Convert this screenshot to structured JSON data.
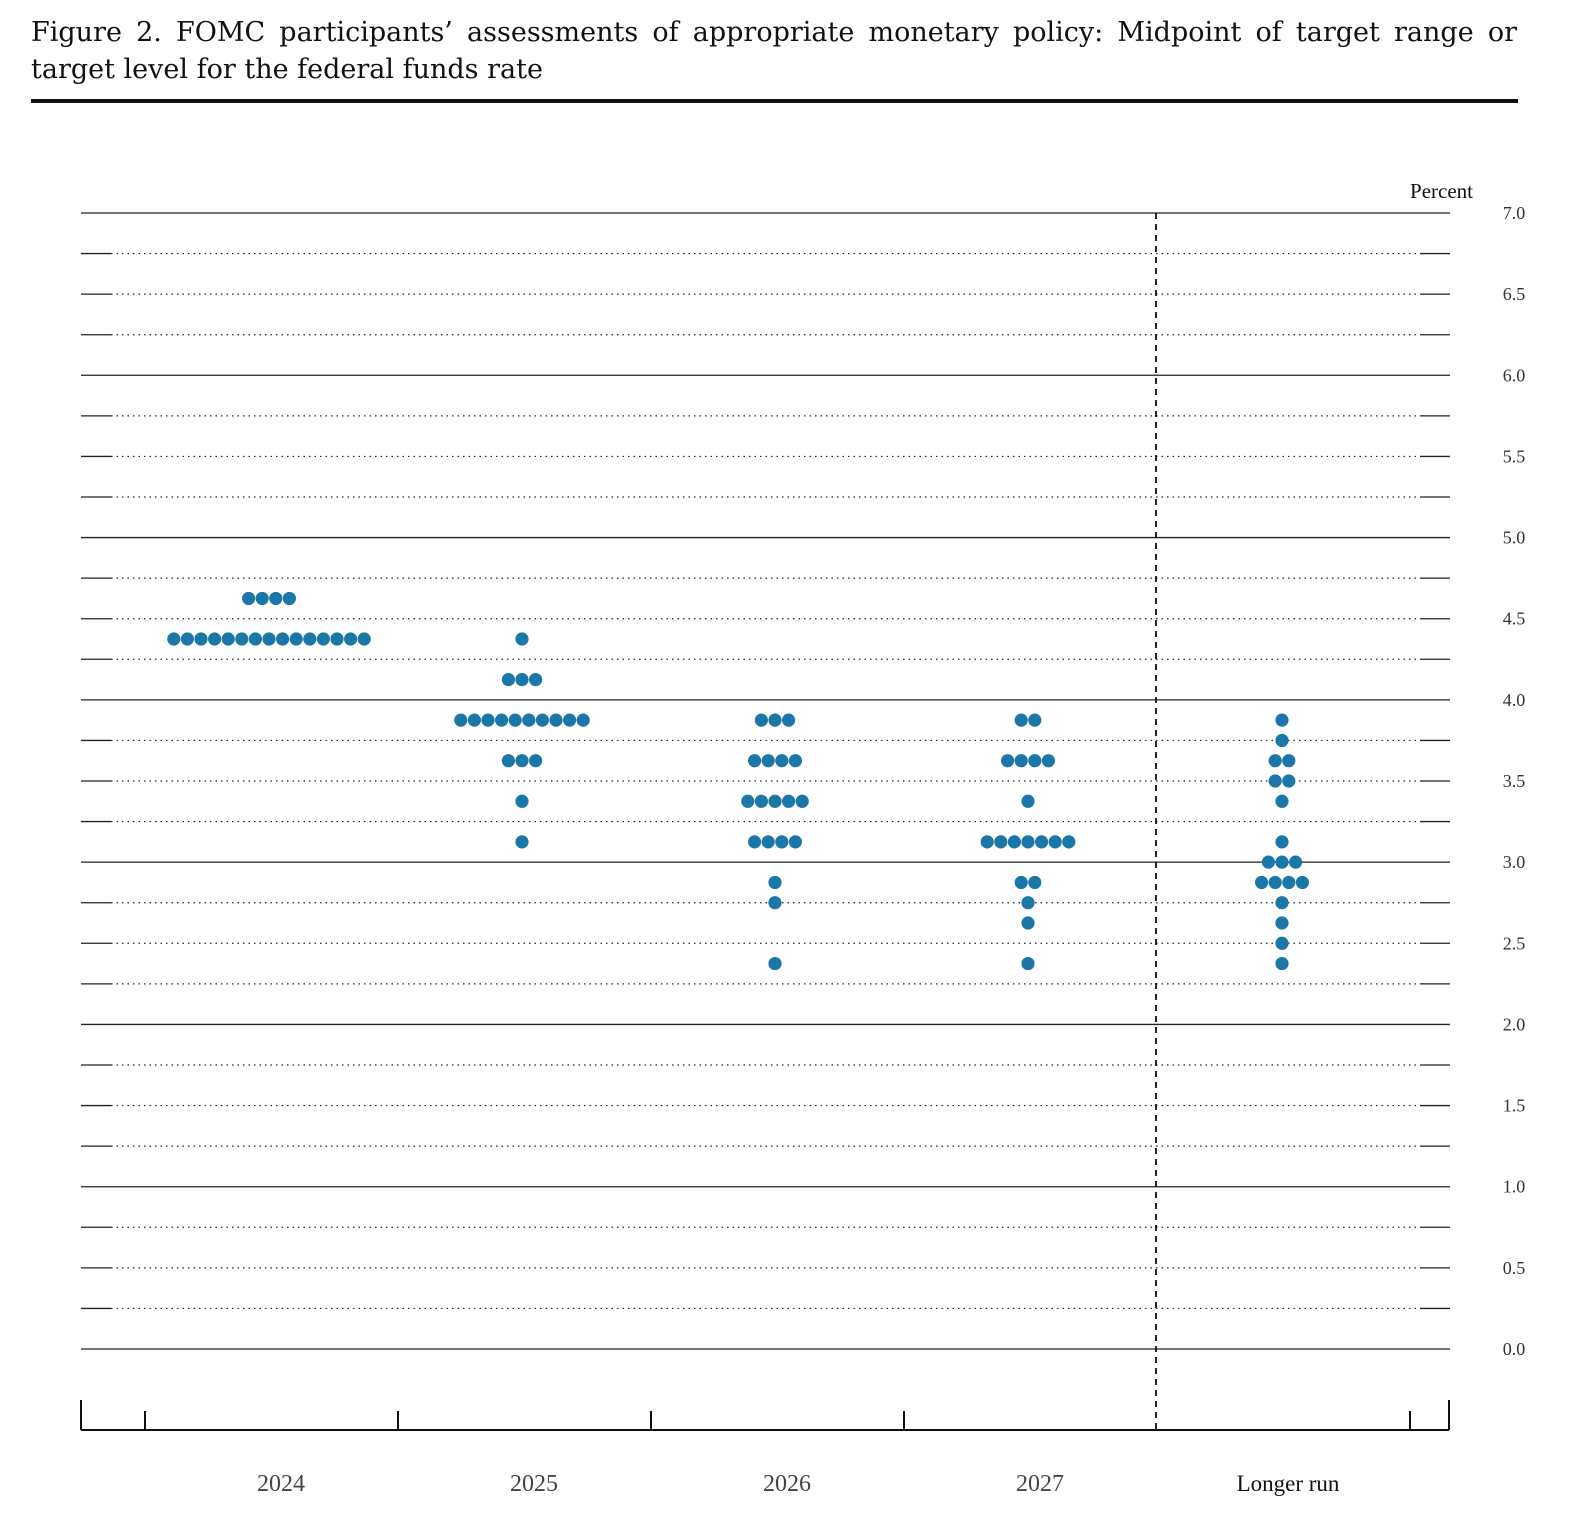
{
  "figure": {
    "title": "Figure 2.  FOMC participants’ assessments of appropriate monetary policy:  Midpoint of target range or target level for the federal funds rate"
  },
  "chart_data": {
    "type": "scatter",
    "title": "Figure 2.  FOMC participants’ assessments of appropriate monetary policy:  Midpoint of target range or target level for the federal funds rate",
    "ylabel": "Percent",
    "xlabel": "",
    "ylim": [
      0.0,
      7.0
    ],
    "yticks": [
      "0.0",
      "0.5",
      "1.0",
      "1.5",
      "2.0",
      "2.5",
      "3.0",
      "3.5",
      "4.0",
      "4.5",
      "5.0",
      "5.5",
      "6.0",
      "6.5",
      "7.0"
    ],
    "grid": "solid at whole percents, dotted every 0.25",
    "categories": [
      "2024",
      "2025",
      "2026",
      "2027",
      "Longer run"
    ],
    "dot_color": "#1b77a8",
    "grid_color": "#222222",
    "separator": "dashed vertical line between 2027 and Longer run",
    "dots": [
      [
        {
          "rate": 4.625,
          "count": 4
        },
        {
          "rate": 4.375,
          "count": 15
        }
      ],
      [
        {
          "rate": 4.375,
          "count": 1
        },
        {
          "rate": 4.125,
          "count": 3
        },
        {
          "rate": 3.875,
          "count": 10
        },
        {
          "rate": 3.625,
          "count": 3
        },
        {
          "rate": 3.375,
          "count": 1
        },
        {
          "rate": 3.125,
          "count": 1
        }
      ],
      [
        {
          "rate": 3.875,
          "count": 3
        },
        {
          "rate": 3.625,
          "count": 4
        },
        {
          "rate": 3.375,
          "count": 5
        },
        {
          "rate": 3.125,
          "count": 4
        },
        {
          "rate": 2.875,
          "count": 1
        },
        {
          "rate": 2.75,
          "count": 1
        },
        {
          "rate": 2.375,
          "count": 1
        }
      ],
      [
        {
          "rate": 3.875,
          "count": 2
        },
        {
          "rate": 3.625,
          "count": 4
        },
        {
          "rate": 3.375,
          "count": 1
        },
        {
          "rate": 3.125,
          "count": 7
        },
        {
          "rate": 2.875,
          "count": 2
        },
        {
          "rate": 2.75,
          "count": 1
        },
        {
          "rate": 2.625,
          "count": 1
        },
        {
          "rate": 2.375,
          "count": 1
        }
      ],
      [
        {
          "rate": 3.875,
          "count": 1
        },
        {
          "rate": 3.75,
          "count": 1
        },
        {
          "rate": 3.625,
          "count": 2
        },
        {
          "rate": 3.5,
          "count": 2
        },
        {
          "rate": 3.375,
          "count": 1
        },
        {
          "rate": 3.125,
          "count": 1
        },
        {
          "rate": 3.0,
          "count": 3
        },
        {
          "rate": 2.875,
          "count": 4
        },
        {
          "rate": 2.75,
          "count": 1
        },
        {
          "rate": 2.625,
          "count": 1
        },
        {
          "rate": 2.5,
          "count": 1
        },
        {
          "rate": 2.375,
          "count": 1
        }
      ]
    ]
  }
}
